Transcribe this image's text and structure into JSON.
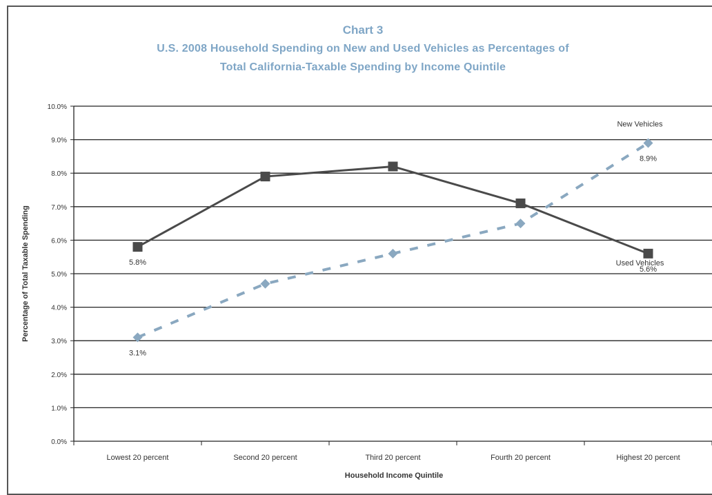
{
  "chart_data": {
    "type": "line",
    "title": "Chart 3",
    "subtitle_line1": "U.S. 2008 Household Spending on New and Used Vehicles as Percentages of",
    "subtitle_line2": "Total California-Taxable Spending by Income Quintile",
    "xlabel": "Household Income Quintile",
    "ylabel": "Percentage of Total Taxable Spending",
    "categories": [
      "Lowest 20 percent",
      "Second 20 percent",
      "Third 20 percent",
      "Fourth 20 percent",
      "Highest 20 percent"
    ],
    "yticks": [
      "0.0%",
      "1.0%",
      "2.0%",
      "3.0%",
      "4.0%",
      "5.0%",
      "6.0%",
      "7.0%",
      "8.0%",
      "9.0%",
      "10.0%"
    ],
    "ylim": [
      0,
      10
    ],
    "grid": true,
    "series": [
      {
        "name": "Used Vehicles",
        "values": [
          5.8,
          7.9,
          8.2,
          7.1,
          5.6
        ],
        "color": "#4a4a4a",
        "style": "solid",
        "marker": "square",
        "data_labels": [
          "5.8%",
          "",
          "",
          "",
          "5.6%"
        ]
      },
      {
        "name": "New Vehicles",
        "values": [
          3.1,
          4.7,
          5.6,
          6.5,
          8.9
        ],
        "color": "#8aa8c0",
        "style": "dashed",
        "marker": "diamond",
        "data_labels": [
          "3.1%",
          "",
          "",
          "",
          "8.9%"
        ]
      }
    ]
  }
}
